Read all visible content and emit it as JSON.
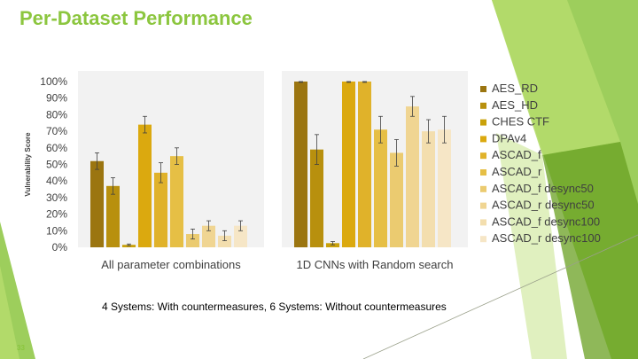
{
  "slide": {
    "title": "Per-Dataset Performance",
    "footer": "4 Systems: With countermeasures, 6 Systems: Without countermeasures",
    "page_number": "33"
  },
  "colors": {
    "title": "#8cc63f",
    "accent_dark": "#6aa022",
    "accent_light": "#b5dc6b"
  },
  "chart_data": {
    "type": "bar",
    "ylabel": "Vulnerability Score",
    "ylim": [
      0,
      100
    ],
    "y_ticks": [
      "0%",
      "10%",
      "20%",
      "30%",
      "40%",
      "50%",
      "60%",
      "70%",
      "80%",
      "90%",
      "100%"
    ],
    "panels": [
      {
        "label": "All parameter combinations"
      },
      {
        "label": "1D CNNs with Random search"
      }
    ],
    "legend_position": "right",
    "series": [
      {
        "name": "AES_RD",
        "color": "#9b7510",
        "values": [
          52,
          100
        ],
        "error": [
          5,
          0.5
        ]
      },
      {
        "name": "AES_HD",
        "color": "#b8900e",
        "values": [
          37,
          59
        ],
        "error": [
          5,
          9
        ]
      },
      {
        "name": "CHES CTF",
        "color": "#c9a10a",
        "values": [
          1.5,
          2.5
        ],
        "error": [
          0.5,
          1
        ]
      },
      {
        "name": "DPAv4",
        "color": "#dba90f",
        "values": [
          74,
          100
        ],
        "error": [
          5,
          0.5
        ]
      },
      {
        "name": "ASCAD_f",
        "color": "#e0b22a",
        "values": [
          45,
          100
        ],
        "error": [
          6,
          0.5
        ]
      },
      {
        "name": "ASCAD_r",
        "color": "#e6bf45",
        "values": [
          55,
          71
        ],
        "error": [
          5,
          8
        ]
      },
      {
        "name": "ASCAD_f desync50",
        "color": "#ebcb70",
        "values": [
          8,
          57
        ],
        "error": [
          3,
          8
        ]
      },
      {
        "name": "ASCAD_r desync50",
        "color": "#f0d592",
        "values": [
          13,
          85
        ],
        "error": [
          3,
          6
        ]
      },
      {
        "name": "ASCAD_f desync100",
        "color": "#f3deae",
        "values": [
          7,
          70
        ],
        "error": [
          3,
          7
        ]
      },
      {
        "name": "ASCAD_r desync100",
        "color": "#f6e6c6",
        "values": [
          13,
          71
        ],
        "error": [
          3,
          8
        ]
      }
    ]
  }
}
